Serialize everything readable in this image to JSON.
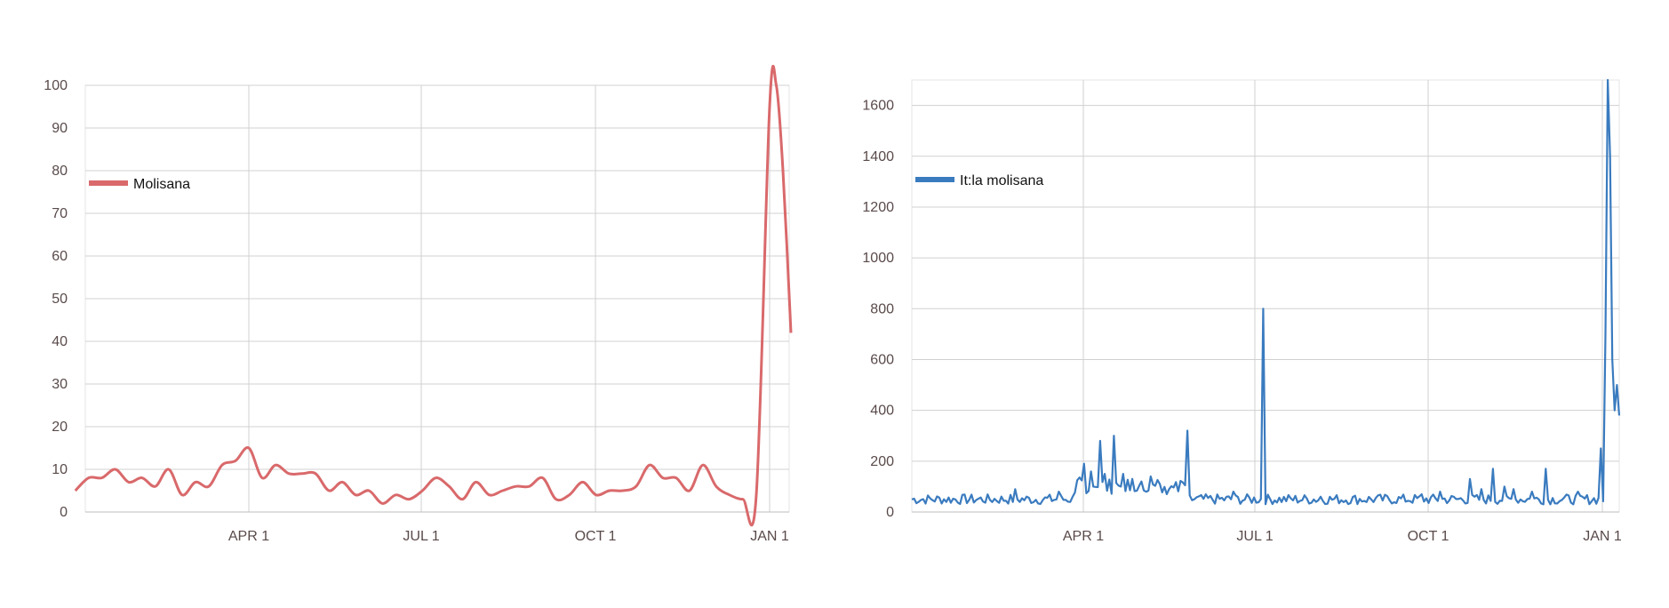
{
  "chart_data": [
    {
      "type": "line",
      "x_tick_labels": [
        "APR 1",
        "JUL 1",
        "OCT 1",
        "JAN 1"
      ],
      "ylim": [
        0,
        100
      ],
      "y_ticks": [
        0,
        10,
        20,
        30,
        40,
        50,
        60,
        70,
        80,
        90,
        100
      ],
      "grid": true,
      "legend_position": "upper-left",
      "color": "#d9696b",
      "series": [
        {
          "name": "Molisana",
          "x_weeks": [
            0,
            1,
            2,
            3,
            4,
            5,
            6,
            7,
            8,
            9,
            10,
            11,
            12,
            13,
            14,
            15,
            16,
            17,
            18,
            19,
            20,
            21,
            22,
            23,
            24,
            25,
            26,
            27,
            28,
            29,
            30,
            31,
            32,
            33,
            34,
            35,
            36,
            37,
            38,
            39,
            40,
            41,
            42,
            43,
            44,
            45,
            46,
            47,
            48,
            49,
            50,
            51,
            52,
            52.5,
            53,
            53.6
          ],
          "values": [
            5,
            8,
            8,
            10,
            7,
            8,
            6,
            10,
            4,
            7,
            6,
            11,
            12,
            15,
            8,
            11,
            9,
            9,
            9,
            5,
            7,
            4,
            5,
            2,
            4,
            3,
            5,
            8,
            6,
            3,
            7,
            4,
            5,
            6,
            6,
            8,
            3,
            4,
            7,
            4,
            5,
            5,
            6,
            11,
            8,
            8,
            5,
            11,
            6,
            4,
            3,
            4,
            95,
            100,
            80,
            42
          ]
        }
      ]
    },
    {
      "type": "line",
      "x_tick_labels": [
        "APR 1",
        "JUL 1",
        "OCT 1",
        "JAN 1"
      ],
      "ylim": [
        0,
        1700
      ],
      "y_ticks": [
        0,
        200,
        400,
        600,
        800,
        1000,
        1200,
        1400,
        1600
      ],
      "grid": true,
      "legend_position": "upper-left",
      "color": "#3a7bbf",
      "series": [
        {
          "name": "It:la molisana",
          "baseline_range": [
            30,
            70
          ],
          "spikes": [
            {
              "day": 45,
              "value": 90
            },
            {
              "day": 64,
              "value": 80
            },
            {
              "day": 75,
              "value": 190
            },
            {
              "day": 78,
              "value": 160
            },
            {
              "day": 82,
              "value": 280
            },
            {
              "day": 84,
              "value": 150
            },
            {
              "day": 88,
              "value": 300
            },
            {
              "day": 92,
              "value": 150
            },
            {
              "day": 96,
              "value": 130
            },
            {
              "day": 100,
              "value": 120
            },
            {
              "day": 104,
              "value": 140
            },
            {
              "day": 108,
              "value": 110
            },
            {
              "day": 112,
              "value": 90
            },
            {
              "day": 120,
              "value": 320
            },
            {
              "day": 140,
              "value": 80
            },
            {
              "day": 153,
              "value": 800
            },
            {
              "day": 178,
              "value": 60
            },
            {
              "day": 222,
              "value": 70
            },
            {
              "day": 230,
              "value": 80
            },
            {
              "day": 243,
              "value": 130
            },
            {
              "day": 248,
              "value": 90
            },
            {
              "day": 253,
              "value": 170
            },
            {
              "day": 258,
              "value": 100
            },
            {
              "day": 262,
              "value": 90
            },
            {
              "day": 270,
              "value": 80
            },
            {
              "day": 276,
              "value": 170
            },
            {
              "day": 290,
              "value": 80
            },
            {
              "day": 300,
              "value": 250
            },
            {
              "day": 302,
              "value": 700
            },
            {
              "day": 303,
              "value": 1700
            },
            {
              "day": 304,
              "value": 1400
            },
            {
              "day": 305,
              "value": 600
            },
            {
              "day": 306,
              "value": 400
            },
            {
              "day": 307,
              "value": 500
            },
            {
              "day": 308,
              "value": 380
            }
          ]
        }
      ]
    }
  ]
}
